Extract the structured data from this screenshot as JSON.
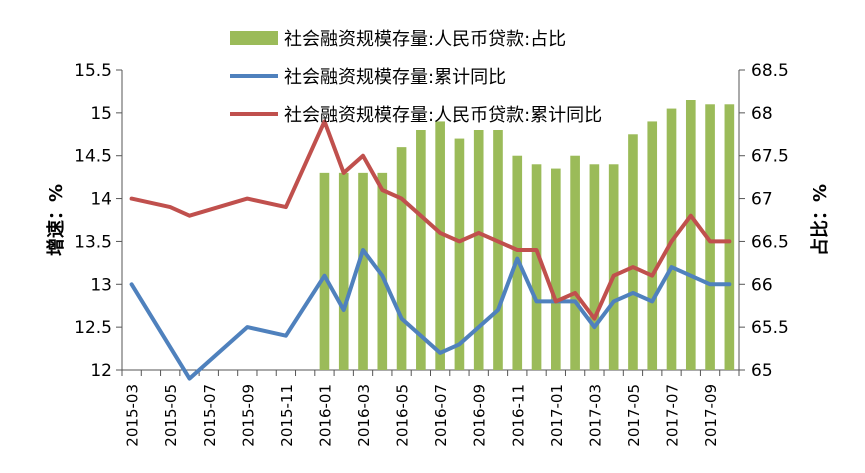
{
  "chart_data": {
    "type": "bar+line",
    "x": [
      "2015-03",
      "2015-04",
      "2015-05",
      "2015-06",
      "2015-07",
      "2015-08",
      "2015-09",
      "2015-10",
      "2015-11",
      "2015-12",
      "2016-01",
      "2016-02",
      "2016-03",
      "2016-04",
      "2016-05",
      "2016-06",
      "2016-07",
      "2016-08",
      "2016-09",
      "2016-10",
      "2016-11",
      "2016-12",
      "2017-01",
      "2017-02",
      "2017-03",
      "2017-04",
      "2017-05",
      "2017-06",
      "2017-07",
      "2017-08",
      "2017-09",
      "2017-10"
    ],
    "x_tick_labels": [
      "2015-03",
      "2015-05",
      "2015-07",
      "2015-09",
      "2015-11",
      "2016-01",
      "2016-03",
      "2016-05",
      "2016-07",
      "2016-09",
      "2016-11",
      "2017-01",
      "2017-03",
      "2017-05",
      "2017-07",
      "2017-09"
    ],
    "series": [
      {
        "name": "社会融资规模存量:人民币贷款:占比",
        "type": "bar",
        "axis": "right",
        "color": "#9bbb59",
        "values": [
          null,
          null,
          null,
          null,
          null,
          null,
          null,
          null,
          null,
          null,
          67.3,
          67.3,
          67.3,
          67.3,
          67.6,
          67.8,
          67.9,
          67.7,
          67.8,
          67.8,
          67.5,
          67.4,
          67.35,
          67.5,
          67.4,
          67.4,
          67.75,
          67.9,
          68.05,
          68.15,
          68.1,
          68.1
        ]
      },
      {
        "name": "社会融资规模存量:累计同比",
        "type": "line",
        "axis": "left",
        "color": "#4f81bd",
        "values": [
          13.0,
          null,
          null,
          11.9,
          null,
          null,
          12.5,
          null,
          12.4,
          null,
          13.1,
          12.7,
          13.4,
          13.1,
          12.6,
          12.4,
          12.2,
          12.3,
          12.5,
          12.7,
          13.3,
          12.8,
          12.8,
          12.8,
          12.5,
          12.8,
          12.9,
          12.8,
          13.2,
          13.1,
          13.0,
          13.0
        ]
      },
      {
        "name": "社会融资规模存量:人民币贷款:累计同比",
        "type": "line",
        "axis": "left",
        "color": "#c0504d",
        "values": [
          14.0,
          null,
          13.9,
          13.8,
          null,
          null,
          14.0,
          null,
          13.9,
          null,
          14.9,
          14.3,
          14.5,
          14.1,
          14.0,
          13.8,
          13.6,
          13.5,
          13.6,
          13.5,
          13.4,
          13.4,
          12.8,
          12.9,
          12.6,
          13.1,
          13.2,
          13.1,
          13.5,
          13.8,
          13.5,
          13.5
        ]
      }
    ],
    "y_left": {
      "label": "增速：%",
      "lim": [
        12,
        15.5
      ],
      "ticks": [
        "12",
        "12.5",
        "13",
        "13.5",
        "14",
        "14.5",
        "15",
        "15.5"
      ]
    },
    "y_right": {
      "label": "占比：%",
      "lim": [
        65,
        68.5
      ],
      "ticks": [
        "65",
        "65.5",
        "66",
        "66.5",
        "67",
        "67.5",
        "68",
        "68.5"
      ]
    },
    "grid": false,
    "legend_position": "top-center"
  }
}
